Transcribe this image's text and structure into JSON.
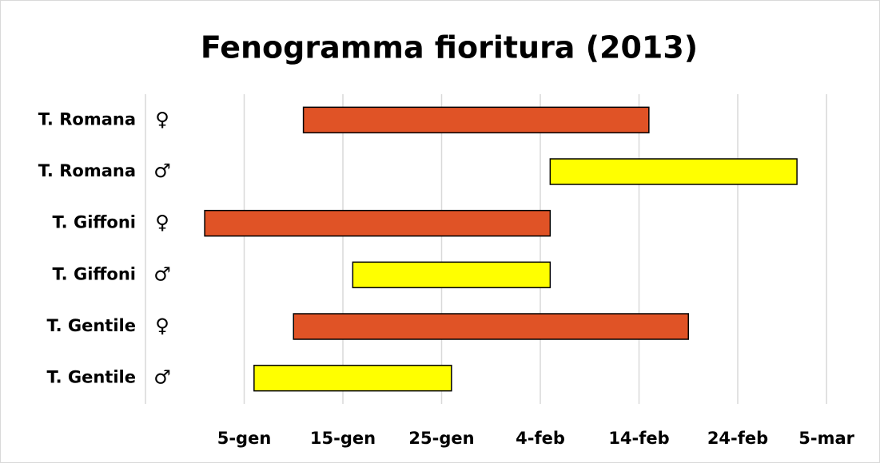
{
  "chart_data": {
    "type": "floating-bar",
    "title": "Fenogramma fioritura (2013)",
    "categories": [
      "T. Romana",
      "T. Romana",
      "T. Giffoni",
      "T. Giffoni",
      "T. Gentile",
      "T. Gentile"
    ],
    "sex": [
      "♀",
      "♂",
      "♀",
      "♂",
      "♀",
      "♂"
    ],
    "start": [
      11,
      36,
      1,
      16,
      10,
      6
    ],
    "end": [
      46,
      61,
      36,
      36,
      50,
      26
    ],
    "colors": [
      "#e05326",
      "#ffff00",
      "#e05326",
      "#ffff00",
      "#e05326",
      "#ffff00"
    ],
    "xlim": [
      -5,
      67
    ],
    "xticks": [
      {
        "value": 5,
        "label": "5-gen"
      },
      {
        "value": 15,
        "label": "15-gen"
      },
      {
        "value": 25,
        "label": "25-gen"
      },
      {
        "value": 35,
        "label": "4-feb"
      },
      {
        "value": 45,
        "label": "14-feb"
      },
      {
        "value": 55,
        "label": "24-feb"
      },
      {
        "value": 64,
        "label": "5-mar"
      }
    ],
    "grid": true
  }
}
